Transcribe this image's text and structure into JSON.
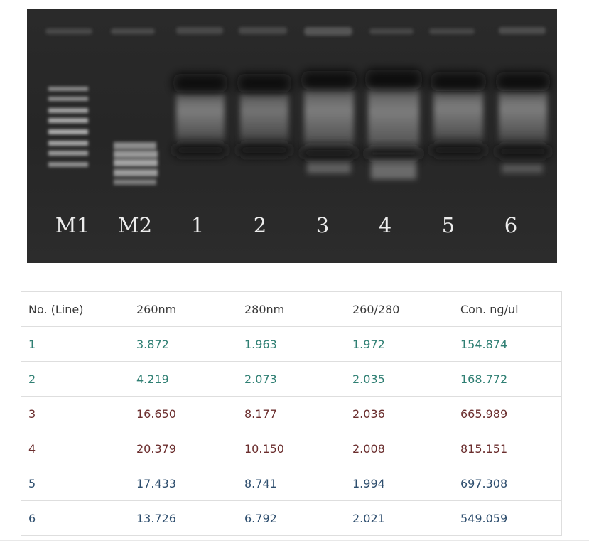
{
  "gel": {
    "lane_labels": [
      "M1",
      "M2",
      "1",
      "2",
      "3",
      "4",
      "5",
      "6"
    ]
  },
  "table": {
    "headers": [
      "No. (Line)",
      "260nm",
      "280nm",
      "260/280",
      "Con. ng/ul"
    ],
    "rows": [
      {
        "cells": [
          "1",
          "3.872",
          "1.963",
          "1.972",
          "154.874"
        ],
        "color": "#2f7f73"
      },
      {
        "cells": [
          "2",
          "4.219",
          "2.073",
          "2.035",
          "168.772"
        ],
        "color": "#2f7f73"
      },
      {
        "cells": [
          "3",
          "16.650",
          "8.177",
          "2.036",
          "665.989"
        ],
        "color": "#6b2e2e"
      },
      {
        "cells": [
          "4",
          "20.379",
          "10.150",
          "2.008",
          "815.151"
        ],
        "color": "#6b2e2e"
      },
      {
        "cells": [
          "5",
          "17.433",
          "8.741",
          "1.994",
          "697.308"
        ],
        "color": "#2f4f6f"
      },
      {
        "cells": [
          "6",
          "13.726",
          "6.792",
          "2.021",
          "549.059"
        ],
        "color": "#2f4f6f"
      }
    ]
  }
}
